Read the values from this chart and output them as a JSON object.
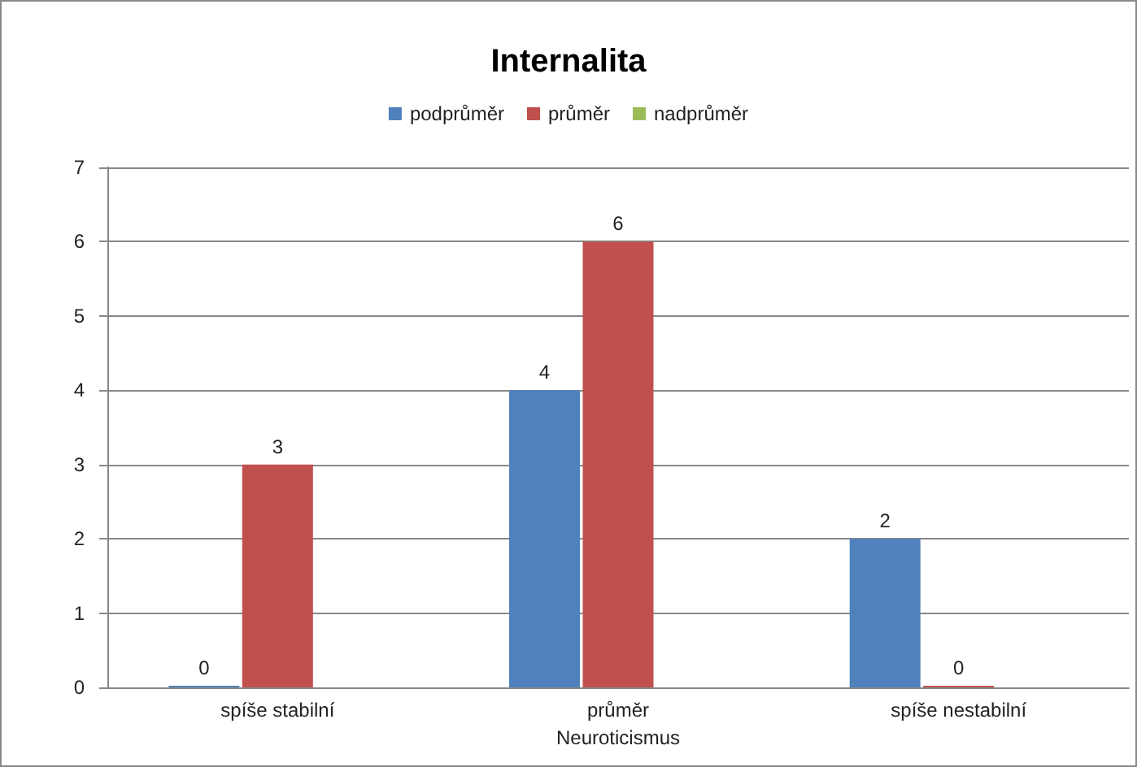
{
  "chart_data": {
    "type": "bar",
    "title": "Internalita",
    "xlabel": "Neuroticismus",
    "categories": [
      "spíše stabilní",
      "průměr",
      "spíše nestabilní"
    ],
    "series": [
      {
        "name": "podprůměr",
        "color": "#4f81bd",
        "values": [
          0,
          4,
          2
        ]
      },
      {
        "name": "průměr",
        "color": "#c0504d",
        "values": [
          3,
          6,
          0
        ]
      },
      {
        "name": "nadprůměr",
        "color": "#9bbb59",
        "values": [
          null,
          null,
          null
        ]
      }
    ],
    "ylim": [
      0,
      7
    ],
    "yticks": [
      0,
      1,
      2,
      3,
      4,
      5,
      6,
      7
    ],
    "grid": "y",
    "legend": "top",
    "data_labels": true
  }
}
